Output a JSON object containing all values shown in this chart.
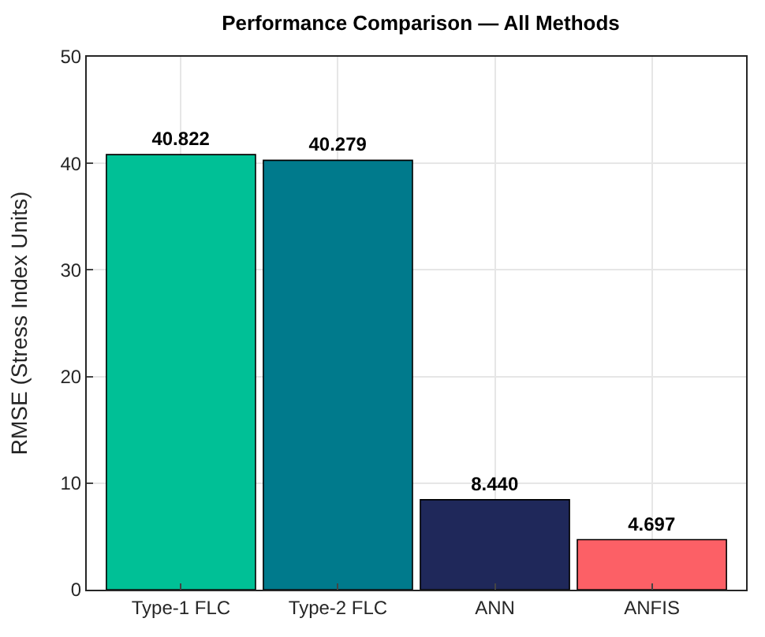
{
  "chart_data": {
    "type": "bar",
    "title": "Performance Comparison — All Methods",
    "ylabel": "RMSE (Stress Index Units)",
    "categories": [
      "Type-1 FLC",
      "Type-2 FLC",
      "ANN",
      "ANFIS"
    ],
    "values": [
      40.822,
      40.279,
      8.44,
      4.697
    ],
    "colors": [
      "#00c096",
      "#007a8c",
      "#1f285a",
      "#fc6066"
    ],
    "ylim": [
      0,
      50
    ],
    "yticks": [
      0,
      10,
      20,
      30,
      40,
      50
    ],
    "grid": true,
    "value_labels": [
      "40.822",
      "40.279",
      "8.440",
      "4.697"
    ]
  }
}
